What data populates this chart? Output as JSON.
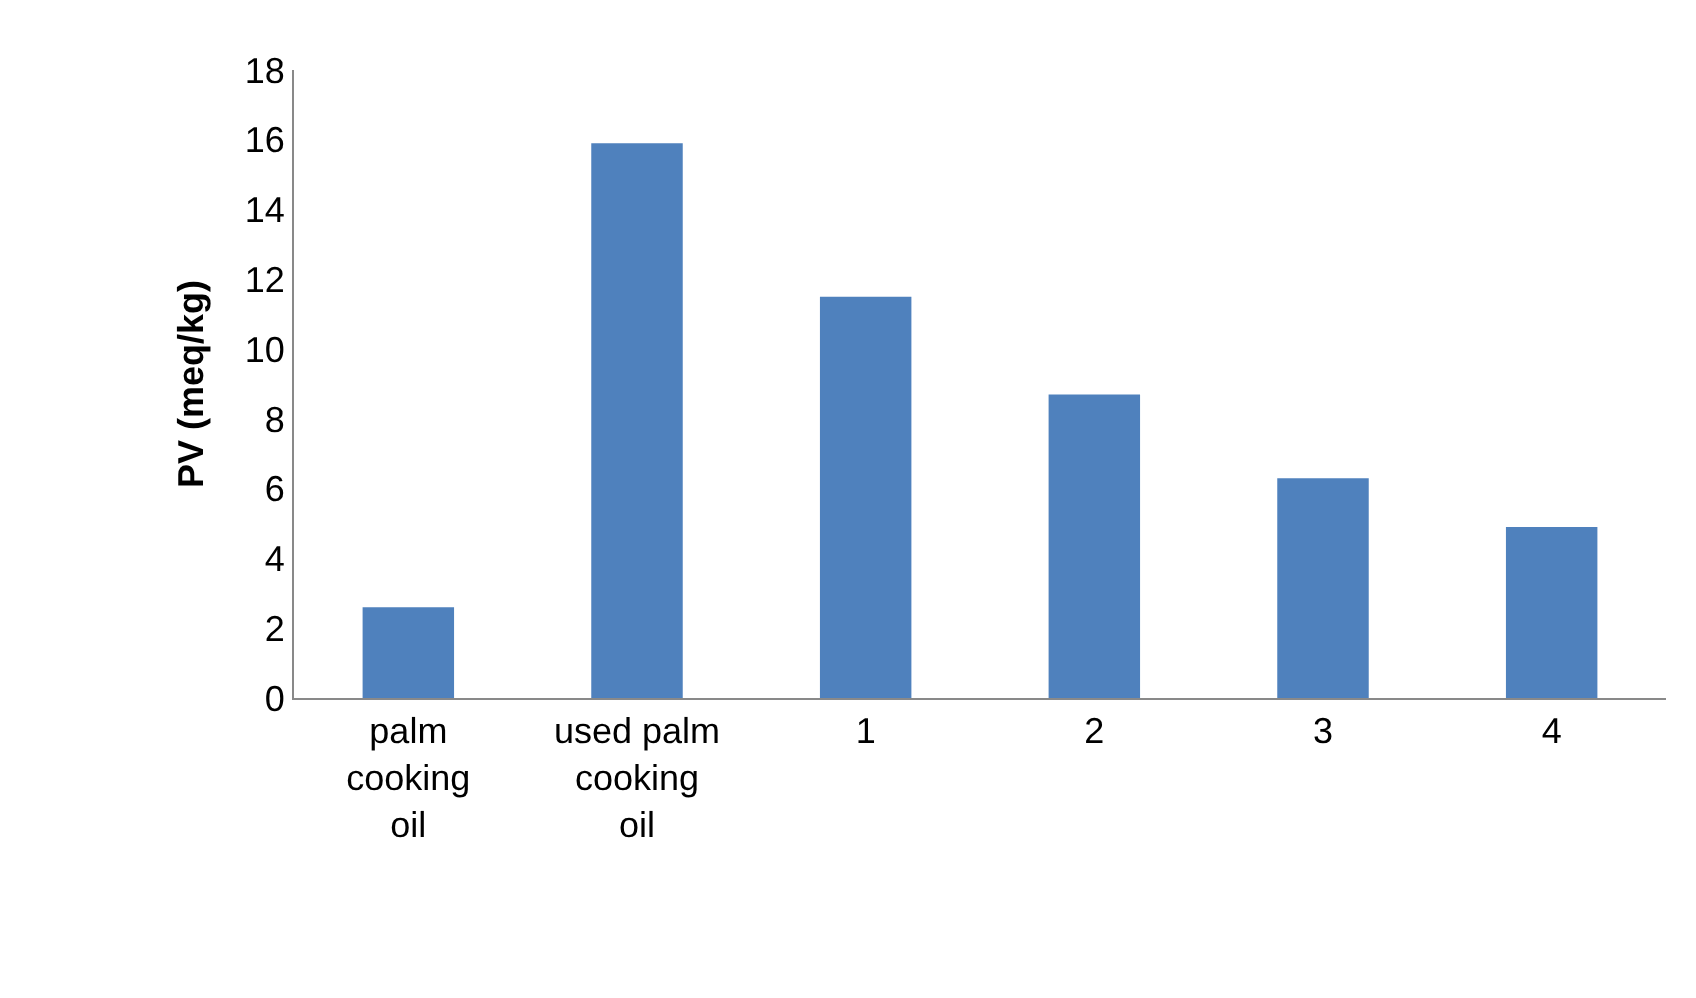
{
  "chart_data": {
    "type": "bar",
    "ylabel": "PV (meq/kg)",
    "categories": [
      "palm cooking oil",
      "used palm cooking oil",
      "1",
      "2",
      "3",
      "4"
    ],
    "values": [
      2.6,
      15.9,
      11.5,
      8.7,
      6.3,
      4.9
    ],
    "color": "#4f81bd",
    "ylim": [
      0,
      18
    ],
    "yticks": [
      0,
      2,
      4,
      6,
      8,
      10,
      12,
      14,
      16,
      18
    ]
  }
}
